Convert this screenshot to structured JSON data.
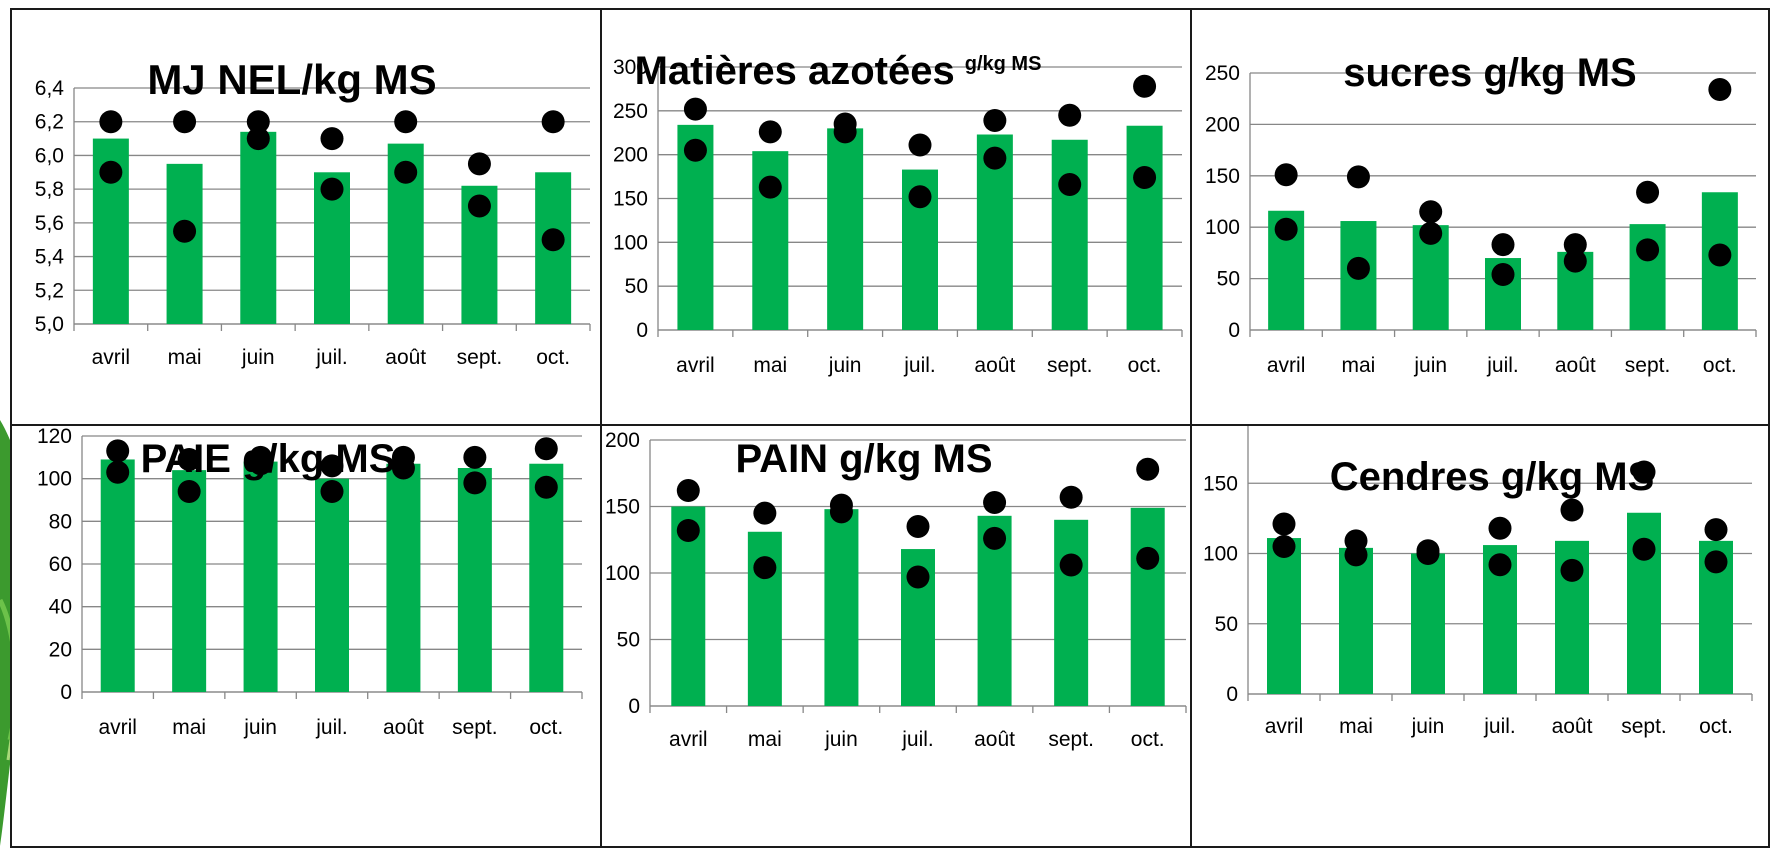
{
  "colors": {
    "bar": "#00b050",
    "dot": "#000000",
    "grid": "#878787",
    "border": "#1a1a1a",
    "leaf": "#3c9a2e"
  },
  "charts": [
    {
      "id": "nel",
      "chart_data": {
        "type": "bar",
        "title": "MJ NEL/kg MS",
        "categories": [
          "avril",
          "mai",
          "juin",
          "juil.",
          "août",
          "sept.",
          "oct."
        ],
        "values": [
          6.1,
          5.95,
          6.14,
          5.9,
          6.07,
          5.82,
          5.9
        ],
        "markers": [
          [
            6.2,
            5.9
          ],
          [
            6.2,
            5.55
          ],
          [
            6.2,
            6.1
          ],
          [
            6.1,
            5.8
          ],
          [
            6.2,
            5.9
          ],
          [
            5.95,
            5.7
          ],
          [
            6.2,
            5.5
          ]
        ],
        "ylim": [
          5.0,
          6.4
        ],
        "yticks": [
          "5,0",
          "5,2",
          "5,4",
          "5,6",
          "5,8",
          "6,0",
          "6,2",
          "6,4"
        ],
        "grid": true
      }
    },
    {
      "id": "mat",
      "chart_data": {
        "type": "bar",
        "title": "Matières azotées",
        "title_suffix": "g/kg MS",
        "categories": [
          "avril",
          "mai",
          "juin",
          "juil.",
          "août",
          "sept.",
          "oct."
        ],
        "values": [
          234,
          204,
          230,
          183,
          223,
          217,
          233
        ],
        "markers": [
          [
            252,
            205
          ],
          [
            226,
            163
          ],
          [
            235,
            226
          ],
          [
            211,
            152
          ],
          [
            239,
            196
          ],
          [
            245,
            166
          ],
          [
            278,
            174
          ]
        ],
        "ylim": [
          0,
          300
        ],
        "yticks": [
          "0",
          "50",
          "100",
          "150",
          "200",
          "250",
          "300"
        ],
        "grid": true
      }
    },
    {
      "id": "sucres",
      "chart_data": {
        "type": "bar",
        "title": "sucres g/kg MS",
        "categories": [
          "avril",
          "mai",
          "juin",
          "juil.",
          "août",
          "sept.",
          "oct."
        ],
        "values": [
          116,
          106,
          102,
          70,
          76,
          103,
          134
        ],
        "markers": [
          [
            151,
            98
          ],
          [
            149,
            60
          ],
          [
            115,
            94
          ],
          [
            83,
            54
          ],
          [
            83,
            67
          ],
          [
            134,
            78
          ],
          [
            234,
            73
          ]
        ],
        "ylim": [
          0,
          250
        ],
        "yticks": [
          "0",
          "50",
          "100",
          "150",
          "200",
          "250"
        ],
        "grid": true
      }
    },
    {
      "id": "paie",
      "chart_data": {
        "type": "bar",
        "title": "PAIE g/kg MS",
        "categories": [
          "avril",
          "mai",
          "juin",
          "juil.",
          "août",
          "sept.",
          "oct."
        ],
        "values": [
          109,
          104,
          108,
          100,
          107,
          105,
          107
        ],
        "markers": [
          [
            113,
            103
          ],
          [
            109,
            94
          ],
          [
            110,
            107
          ],
          [
            106,
            94
          ],
          [
            110,
            105
          ],
          [
            110,
            98
          ],
          [
            114,
            96
          ]
        ],
        "ylim": [
          0,
          120
        ],
        "yticks": [
          "0",
          "20",
          "40",
          "60",
          "80",
          "100",
          "120"
        ],
        "grid": true
      }
    },
    {
      "id": "pain",
      "chart_data": {
        "type": "bar",
        "title": "PAIN g/kg MS",
        "categories": [
          "avril",
          "mai",
          "juin",
          "juil.",
          "août",
          "sept.",
          "oct."
        ],
        "values": [
          150,
          131,
          148,
          118,
          143,
          140,
          149
        ],
        "markers": [
          [
            162,
            132
          ],
          [
            145,
            104
          ],
          [
            151,
            146
          ],
          [
            135,
            97
          ],
          [
            153,
            126
          ],
          [
            157,
            106
          ],
          [
            178,
            111
          ]
        ],
        "ylim": [
          0,
          200
        ],
        "yticks": [
          "0",
          "50",
          "100",
          "150",
          "200"
        ],
        "grid": true
      }
    },
    {
      "id": "cendres",
      "chart_data": {
        "type": "bar",
        "title": "Cendres g/kg MS",
        "categories": [
          "avril",
          "mai",
          "juin",
          "juil.",
          "août",
          "sept.",
          "oct."
        ],
        "values": [
          111,
          104,
          100,
          106,
          109,
          129,
          109
        ],
        "markers": [
          [
            121,
            105
          ],
          [
            109,
            99
          ],
          [
            102,
            100
          ],
          [
            118,
            92
          ],
          [
            131,
            88
          ],
          [
            158,
            103
          ],
          [
            117,
            94
          ]
        ],
        "ylim": [
          0,
          200
        ],
        "yticks": [
          "0",
          "50",
          "100",
          "150",
          "200"
        ],
        "grid": true
      }
    }
  ]
}
